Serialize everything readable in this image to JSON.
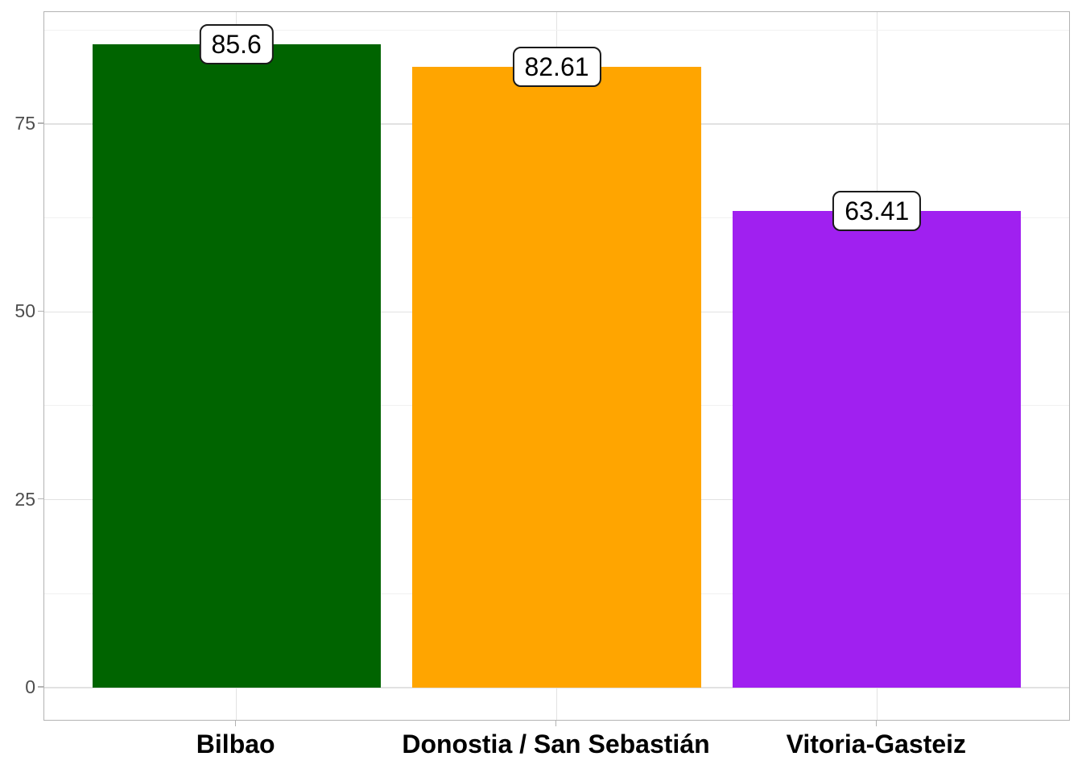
{
  "chart_data": {
    "type": "bar",
    "title": "",
    "xlabel": "",
    "ylabel": "",
    "categories": [
      "Bilbao",
      "Donostia / San Sebastián",
      "Vitoria-Gasteiz"
    ],
    "values": [
      85.6,
      82.61,
      63.41
    ],
    "value_labels": [
      "85.6",
      "82.61",
      "63.41"
    ],
    "series_colors": [
      "#006400",
      "#FFA500",
      "#A020F0"
    ],
    "ylim": [
      -4.28,
      89.88
    ],
    "y_major_ticks": [
      0,
      25,
      50,
      75
    ],
    "y_tick_labels": [
      "0",
      "25",
      "50",
      "75"
    ],
    "y_minor_ticks": [
      12.5,
      37.5,
      62.5,
      87.5
    ],
    "grid": "horizontal major+minor, vertical major at category centers",
    "legend_position": "none",
    "bar_width_fraction": 0.9,
    "value_label_style": "white rounded box with black border centered on bar top"
  },
  "colors": {
    "background": "#ffffff",
    "panel_background": "#ffffff",
    "panel_border": "#b3b3b3",
    "grid_major": "#e2e2e2",
    "grid_minor": "#f1f1f1",
    "tick_mark": "#b3b3b3",
    "y_tick_text": "#4d4d4d",
    "x_tick_text": "#000000",
    "value_box_background": "#ffffff",
    "value_box_border": "#1a1a1a",
    "value_text": "#000000"
  }
}
